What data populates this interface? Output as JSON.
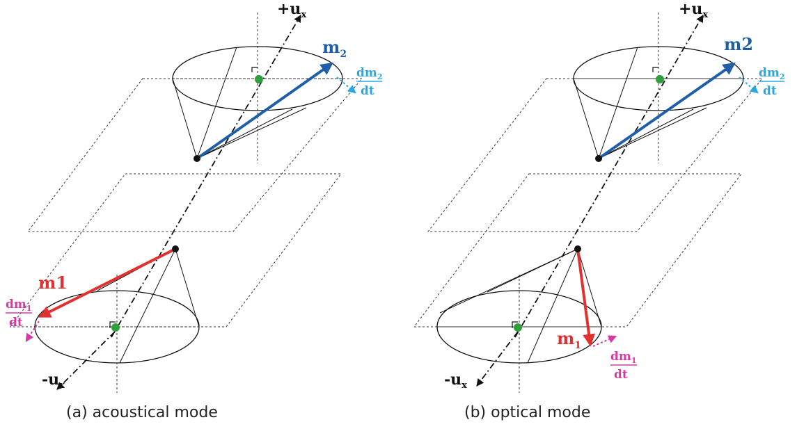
{
  "colors": {
    "m2": "#1f5fa8",
    "dm2": "#29a8e0",
    "m1": "#e03030",
    "dm1": "#d63aa5",
    "center": "#2e9e3e",
    "line": "#111111"
  },
  "panel_a": {
    "axis_plus": "+u",
    "axis_plus_sub": "x",
    "axis_minus": "-u",
    "axis_minus_sub": "x",
    "top_vector_label": "m",
    "top_vector_sub": "2",
    "top_deriv_num": "dm",
    "top_deriv_num_sub": "2",
    "top_deriv_den": "dt",
    "bottom_vector_label": "m1",
    "bottom_deriv_num": "dm",
    "bottom_deriv_num_sub": "1",
    "bottom_deriv_den": "dt",
    "caption": "(a) acoustical mode"
  },
  "panel_b": {
    "axis_plus": "+u",
    "axis_plus_sub": "x",
    "axis_minus": "-u",
    "axis_minus_sub": "x",
    "top_vector_label": "m2",
    "top_deriv_num": "dm",
    "top_deriv_num_sub": "2",
    "top_deriv_den": "dt",
    "bottom_vector_label": "m",
    "bottom_vector_sub": "1",
    "bottom_deriv_num": "dm",
    "bottom_deriv_num_sub": "1",
    "bottom_deriv_den": "dt",
    "caption": "(b) optical mode"
  }
}
